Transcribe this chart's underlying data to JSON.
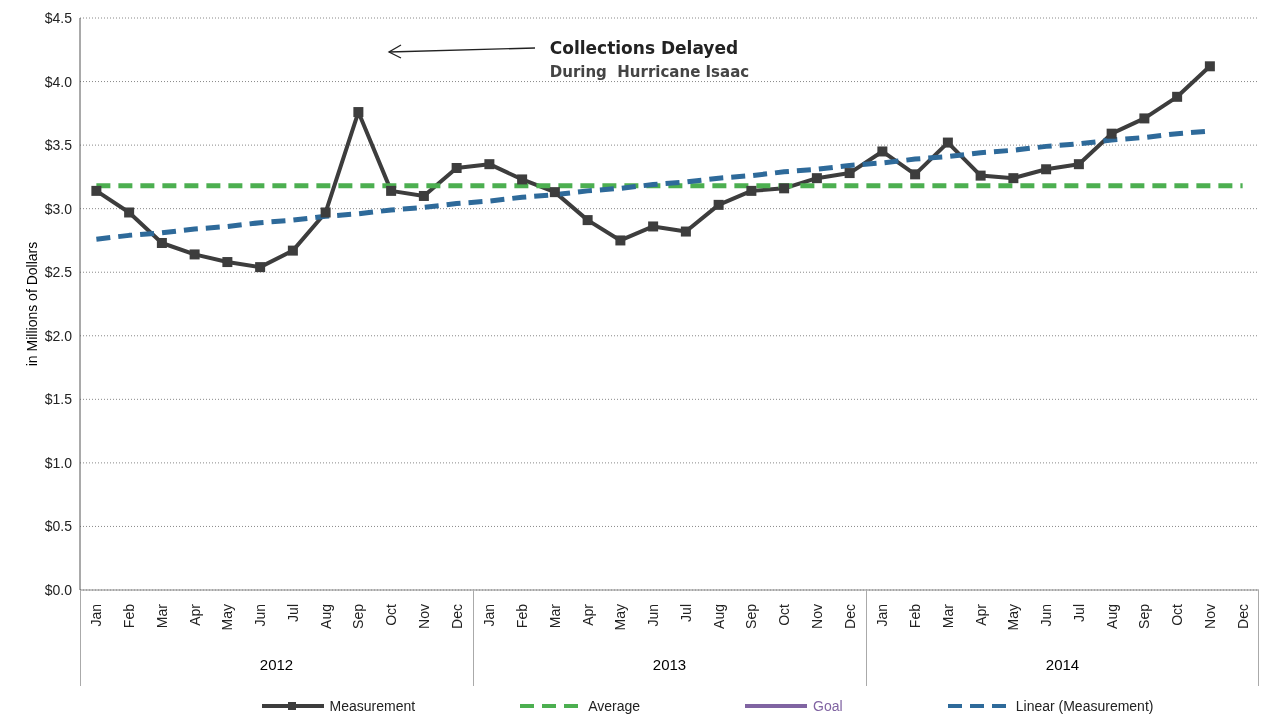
{
  "chart_data": {
    "type": "line",
    "ylabel": "in Millions of Dollars",
    "categories": [
      "Jan",
      "Feb",
      "Mar",
      "Apr",
      "May",
      "Jun",
      "Jul",
      "Aug",
      "Sep",
      "Oct",
      "Nov",
      "Dec",
      "Jan",
      "Feb",
      "Mar",
      "Apr",
      "May",
      "Jun",
      "Jul",
      "Aug",
      "Sep",
      "Oct",
      "Nov",
      "Dec",
      "Jan",
      "Feb",
      "Mar",
      "Apr",
      "May",
      "Jun",
      "Jul",
      "Aug",
      "Sep",
      "Oct",
      "Nov",
      "Dec"
    ],
    "series": [
      {
        "name": "Measurement",
        "color": "#3d3d3d",
        "marker": "square",
        "line_style": "solid",
        "values": [
          3.14,
          2.97,
          2.73,
          2.64,
          2.58,
          2.54,
          2.67,
          2.97,
          3.76,
          3.14,
          3.1,
          3.32,
          3.35,
          3.23,
          3.13,
          2.91,
          2.75,
          2.86,
          2.82,
          3.03,
          3.14,
          3.16,
          3.24,
          3.28,
          3.45,
          3.27,
          3.52,
          3.26,
          3.24,
          3.31,
          3.35,
          3.59,
          3.71,
          3.88,
          4.12,
          null
        ]
      },
      {
        "name": "Average",
        "color": "#4caf50",
        "marker": "none",
        "line_style": "dashed",
        "values": [
          3.18,
          3.18,
          3.18,
          3.18,
          3.18,
          3.18,
          3.18,
          3.18,
          3.18,
          3.18,
          3.18,
          3.18,
          3.18,
          3.18,
          3.18,
          3.18,
          3.18,
          3.18,
          3.18,
          3.18,
          3.18,
          3.18,
          3.18,
          3.18,
          3.18,
          3.18,
          3.18,
          3.18,
          3.18,
          3.18,
          3.18,
          3.18,
          3.18,
          3.18,
          3.18,
          3.18
        ]
      },
      {
        "name": "Goal",
        "color": "#8064a2",
        "marker": "none",
        "line_style": "solid",
        "values": [
          null,
          null,
          null,
          null,
          null,
          null,
          null,
          null,
          null,
          null,
          null,
          null,
          null,
          null,
          null,
          null,
          null,
          null,
          null,
          null,
          null,
          null,
          null,
          null,
          null,
          null,
          null,
          null,
          null,
          null,
          null,
          null,
          null,
          null,
          null,
          null
        ]
      },
      {
        "name": "Linear (Measurement)",
        "color": "#2e6a9a",
        "marker": "none",
        "line_style": "dashed",
        "values": [
          2.76,
          2.79,
          2.81,
          2.84,
          2.86,
          2.89,
          2.91,
          2.94,
          2.96,
          2.99,
          3.01,
          3.04,
          3.06,
          3.09,
          3.11,
          3.14,
          3.16,
          3.19,
          3.21,
          3.24,
          3.26,
          3.29,
          3.31,
          3.34,
          3.36,
          3.39,
          3.41,
          3.44,
          3.46,
          3.49,
          3.51,
          3.54,
          3.56,
          3.59,
          3.61,
          null
        ]
      }
    ],
    "ylim": [
      0,
      4.5
    ],
    "yticks": [
      {
        "value": 0,
        "label": "$0.0"
      },
      {
        "value": 0.5,
        "label": "$0.5"
      },
      {
        "value": 1,
        "label": "$1.0"
      },
      {
        "value": 1.5,
        "label": "$1.5"
      },
      {
        "value": 2,
        "label": "$2.0"
      },
      {
        "value": 2.5,
        "label": "$2.5"
      },
      {
        "value": 3,
        "label": "$3.0"
      },
      {
        "value": 3.5,
        "label": "$3.5"
      },
      {
        "value": 4,
        "label": "$4.0"
      },
      {
        "value": 4.5,
        "label": "$4.5"
      }
    ],
    "grid": "y",
    "legend": "bottom",
    "annotations": [
      "Collections Delayed\nDuring  Hurricane Isaac",
      "2012",
      "2013",
      "2014"
    ]
  }
}
